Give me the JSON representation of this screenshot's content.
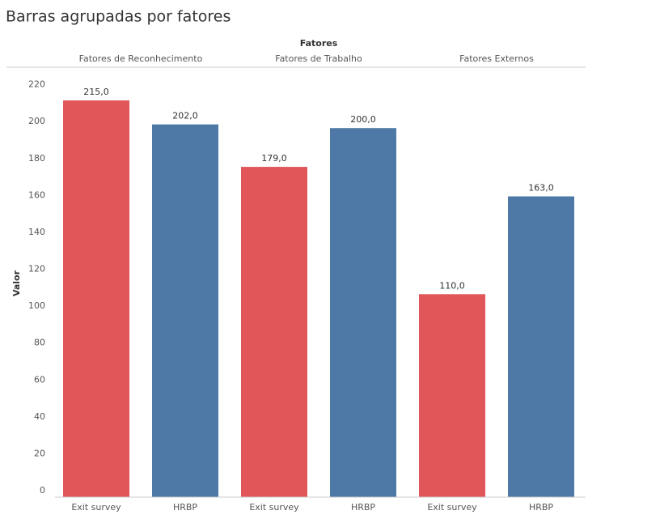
{
  "chart_data": {
    "type": "grouped_bar",
    "title": "Barras agrupadas por fatores",
    "group_header": "Fatores",
    "groups": [
      "Fatores de Reconhecimento",
      "Fatores de Trabalho",
      "Fatores Externos"
    ],
    "series": [
      {
        "name": "Exit survey",
        "color": "#e15759",
        "values": [
          215,
          179,
          110
        ],
        "value_labels": [
          "215,0",
          "179,0",
          "110,0"
        ]
      },
      {
        "name": "HRBP",
        "color": "#4e79a7",
        "values": [
          202,
          200,
          163
        ],
        "value_labels": [
          "202,0",
          "200,0",
          "163,0"
        ]
      }
    ],
    "ylabel": "Valor",
    "ylim": [
      0,
      233
    ],
    "yticks": [
      0,
      20,
      40,
      60,
      80,
      100,
      120,
      140,
      160,
      180,
      200,
      220
    ],
    "grid": false
  }
}
